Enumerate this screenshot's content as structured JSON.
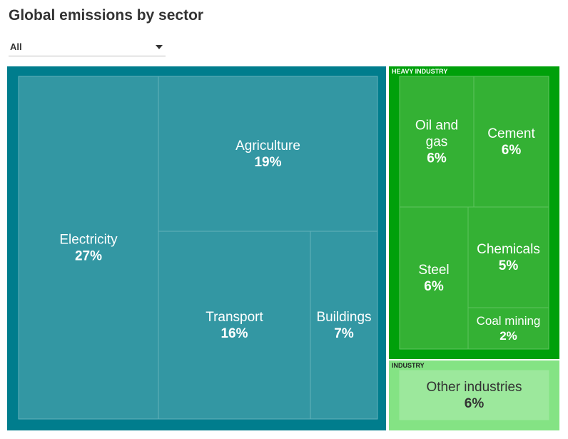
{
  "title": "Global emissions by sector",
  "filter": {
    "selected": "All"
  },
  "colors": {
    "teal_frame": "#007d8d",
    "teal_cell": "#3397a3",
    "teal_line": "#63b0ba",
    "green_frame": "#00a00a",
    "green_cell": "#34b134",
    "green_line": "#5ec25e",
    "light_frame": "#84e384",
    "light_cell": "#9ce89c"
  },
  "chart_data": {
    "type": "treemap",
    "title": "Global emissions by sector",
    "unit": "%",
    "groups": [
      {
        "name": "",
        "items": [
          {
            "name": "Electricity",
            "value": 27
          },
          {
            "name": "Agriculture",
            "value": 19
          },
          {
            "name": "Transport",
            "value": 16
          },
          {
            "name": "Buildings",
            "value": 7
          }
        ]
      },
      {
        "name": "HEAVY INDUSTRY",
        "items": [
          {
            "name": "Oil and gas",
            "value": 6
          },
          {
            "name": "Cement",
            "value": 6
          },
          {
            "name": "Steel",
            "value": 6
          },
          {
            "name": "Chemicals",
            "value": 5
          },
          {
            "name": "Coal mining",
            "value": 2
          }
        ]
      },
      {
        "name": "INDUSTRY",
        "items": [
          {
            "name": "Other industries",
            "value": 6
          }
        ]
      }
    ]
  }
}
